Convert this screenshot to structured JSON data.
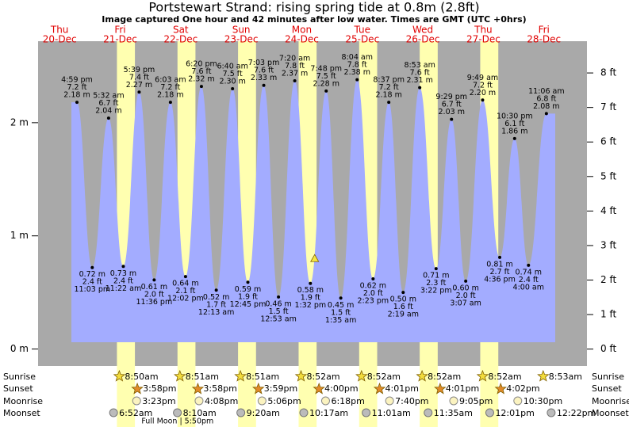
{
  "chart_data": {
    "type": "tide",
    "title": "Portstewart Strand: rising  spring tide at 0.8m (2.8ft)",
    "subtitle": "Image captured One hour and 42 minutes after low water. Times are GMT (UTC +0hrs)",
    "ylim": [
      -0.15,
      2.72
    ],
    "yticks": [
      {
        "value": 0,
        "label": "0 m"
      },
      {
        "value": 1,
        "label": "1 m"
      },
      {
        "value": 2,
        "label": "2 m"
      }
    ],
    "y2lim": [
      -0.49,
      8.92
    ],
    "y2ticks": [
      {
        "value": 0,
        "label": "0 ft"
      },
      {
        "value": 1,
        "label": "1 ft"
      },
      {
        "value": 2,
        "label": "2 ft"
      },
      {
        "value": 3,
        "label": "3 ft"
      },
      {
        "value": 4,
        "label": "4 ft"
      },
      {
        "value": 5,
        "label": "5 ft"
      },
      {
        "value": 6,
        "label": "6 ft"
      },
      {
        "value": 7,
        "label": "7 ft"
      },
      {
        "value": 8,
        "label": "8 ft"
      }
    ],
    "color": "#a3acff",
    "rows": {
      "sunrise": "Sunrise",
      "sunset": "Sunset",
      "moonrise": "Moonrise",
      "moonset": "Moonset"
    },
    "days": [
      {
        "weekday": "Thu",
        "date": "20-Dec",
        "tides": [
          {
            "time": "4:59 pm",
            "ft": 7.2,
            "ft_label": "7.2 ft",
            "m": 2.18,
            "m_label": "2.18 m"
          },
          {
            "time": "11:03 pm",
            "ft": 2.4,
            "ft_label": "2.4 ft",
            "m": 0.72,
            "m_label": "0.72 m"
          }
        ]
      },
      {
        "weekday": "Fri",
        "date": "21-Dec",
        "sunrise": "8:50am",
        "sunset": "3:58pm",
        "moonrise": "3:23pm",
        "moonset": "6:52am",
        "tides": [
          {
            "time": "5:32 am",
            "ft": 6.7,
            "ft_label": "6.7 ft",
            "m": 2.04,
            "m_label": "2.04 m"
          },
          {
            "time": "11:22 am",
            "ft": 2.4,
            "ft_label": "2.4 ft",
            "m": 0.73,
            "m_label": "0.73 m"
          },
          {
            "time": "5:39 pm",
            "ft": 7.4,
            "ft_label": "7.4 ft",
            "m": 2.27,
            "m_label": "2.27 m"
          },
          {
            "time": "11:36 pm",
            "ft": 2.0,
            "ft_label": "2.0 ft",
            "m": 0.61,
            "m_label": "0.61 m"
          }
        ]
      },
      {
        "weekday": "Sat",
        "date": "22-Dec",
        "sunrise": "8:51am",
        "sunset": "3:58pm",
        "moonrise": "4:08pm",
        "moonset": "8:10am",
        "note": "Full Moon | 5:50pm",
        "tides": [
          {
            "time": "6:03 am",
            "ft": 7.2,
            "ft_label": "7.2 ft",
            "m": 2.18,
            "m_label": "2.18 m"
          },
          {
            "time": "12:02 pm",
            "ft": 2.1,
            "ft_label": "2.1 ft",
            "m": 0.64,
            "m_label": "0.64 m"
          },
          {
            "time": "6:20 pm",
            "ft": 7.6,
            "ft_label": "7.6 ft",
            "m": 2.32,
            "m_label": "2.32 m"
          }
        ]
      },
      {
        "weekday": "Sun",
        "date": "23-Dec",
        "sunrise": "8:51am",
        "sunset": "3:59pm",
        "moonrise": "5:06pm",
        "moonset": "9:20am",
        "tides": [
          {
            "time": "12:13 am",
            "ft": 1.7,
            "ft_label": "1.7 ft",
            "m": 0.52,
            "m_label": "0.52 m"
          },
          {
            "time": "6:40 am",
            "ft": 7.5,
            "ft_label": "7.5 ft",
            "m": 2.3,
            "m_label": "2.30 m"
          },
          {
            "time": "12:45 pm",
            "ft": 1.9,
            "ft_label": "1.9 ft",
            "m": 0.59,
            "m_label": "0.59 m"
          },
          {
            "time": "7:03 pm",
            "ft": 7.6,
            "ft_label": "7.6 ft",
            "m": 2.33,
            "m_label": "2.33 m"
          }
        ]
      },
      {
        "weekday": "Mon",
        "date": "24-Dec",
        "sunrise": "8:52am",
        "sunset": "4:00pm",
        "moonrise": "6:18pm",
        "moonset": "10:17am",
        "current": {
          "time": "3:14 pm",
          "m": 0.8
        },
        "tides": [
          {
            "time": "12:53 am",
            "ft": 1.5,
            "ft_label": "1.5 ft",
            "m": 0.46,
            "m_label": "0.46 m"
          },
          {
            "time": "7:20 am",
            "ft": 7.8,
            "ft_label": "7.8 ft",
            "m": 2.37,
            "m_label": "2.37 m"
          },
          {
            "time": "1:32 pm",
            "ft": 1.9,
            "ft_label": "1.9 ft",
            "m": 0.58,
            "m_label": "0.58 m"
          },
          {
            "time": "7:48 pm",
            "ft": 7.5,
            "ft_label": "7.5 ft",
            "m": 2.28,
            "m_label": "2.28 m"
          }
        ]
      },
      {
        "weekday": "Tue",
        "date": "25-Dec",
        "sunrise": "8:52am",
        "sunset": "4:01pm",
        "moonrise": "7:40pm",
        "moonset": "11:01am",
        "tides": [
          {
            "time": "1:35 am",
            "ft": 1.5,
            "ft_label": "1.5 ft",
            "m": 0.45,
            "m_label": "0.45 m"
          },
          {
            "time": "8:04 am",
            "ft": 7.8,
            "ft_label": "7.8 ft",
            "m": 2.38,
            "m_label": "2.38 m"
          },
          {
            "time": "2:23 pm",
            "ft": 2.0,
            "ft_label": "2.0 ft",
            "m": 0.62,
            "m_label": "0.62 m"
          },
          {
            "time": "8:37 pm",
            "ft": 7.2,
            "ft_label": "7.2 ft",
            "m": 2.18,
            "m_label": "2.18 m"
          }
        ]
      },
      {
        "weekday": "Wed",
        "date": "26-Dec",
        "sunrise": "8:52am",
        "sunset": "4:01pm",
        "moonrise": "9:05pm",
        "moonset": "11:35am",
        "tides": [
          {
            "time": "2:19 am",
            "ft": 1.6,
            "ft_label": "1.6 ft",
            "m": 0.5,
            "m_label": "0.50 m"
          },
          {
            "time": "8:53 am",
            "ft": 7.6,
            "ft_label": "7.6 ft",
            "m": 2.31,
            "m_label": "2.31 m"
          },
          {
            "time": "3:22 pm",
            "ft": 2.3,
            "ft_label": "2.3 ft",
            "m": 0.71,
            "m_label": "0.71 m"
          },
          {
            "time": "9:29 pm",
            "ft": 6.7,
            "ft_label": "6.7 ft",
            "m": 2.03,
            "m_label": "2.03 m"
          }
        ]
      },
      {
        "weekday": "Thu",
        "date": "27-Dec",
        "sunrise": "8:52am",
        "sunset": "4:02pm",
        "moonrise": "10:30pm",
        "moonset": "12:01pm",
        "tides": [
          {
            "time": "3:07 am",
            "ft": 2.0,
            "ft_label": "2.0 ft",
            "m": 0.6,
            "m_label": "0.60 m"
          },
          {
            "time": "9:49 am",
            "ft": 7.2,
            "ft_label": "7.2 ft",
            "m": 2.2,
            "m_label": "2.20 m"
          },
          {
            "time": "4:36 pm",
            "ft": 2.7,
            "ft_label": "2.7 ft",
            "m": 0.81,
            "m_label": "0.81 m"
          },
          {
            "time": "10:30 pm",
            "ft": 6.1,
            "ft_label": "6.1 ft",
            "m": 1.86,
            "m_label": "1.86 m"
          }
        ]
      },
      {
        "weekday": "Fri",
        "date": "28-Dec",
        "sunrise": "8:53am",
        "moonset": "12:22pm",
        "tides": [
          {
            "time": "4:00 am",
            "ft": 2.4,
            "ft_label": "2.4 ft",
            "m": 0.74,
            "m_label": "0.74 m"
          },
          {
            "time": "11:06 am",
            "ft": 6.8,
            "ft_label": "6.8 ft",
            "m": 2.08,
            "m_label": "2.08 m"
          }
        ]
      }
    ]
  }
}
